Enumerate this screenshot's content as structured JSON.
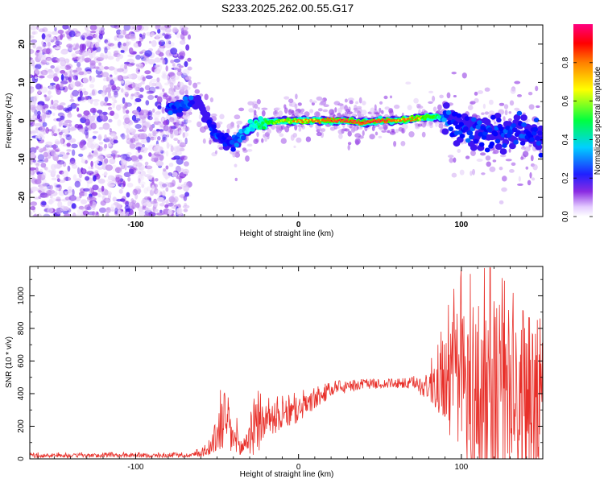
{
  "title": "S233.2025.262.00.55.G17",
  "chart_data": [
    {
      "type": "heatmap",
      "name": "spectrogram",
      "xlabel": "Height of straight line (km)",
      "ylabel": "Frequency (Hz)",
      "xlim": [
        -165,
        150
      ],
      "ylim": [
        -25,
        25
      ],
      "xticks": [
        -100,
        0,
        100
      ],
      "yticks": [
        -20,
        -10,
        0,
        10,
        20
      ],
      "colorbar": {
        "label": "Normalized spectral amplitude",
        "range": [
          0,
          1
        ],
        "ticks": [
          0.0,
          0.2,
          0.4,
          0.6,
          0.8
        ],
        "tick_labels": [
          "0.0",
          "0.2",
          "0.4",
          "0.6",
          "0.8"
        ],
        "colors": [
          "#ffffff",
          "#8a2be2",
          "#0000ff",
          "#00ffff",
          "#00ff00",
          "#ffff00",
          "#ff0000",
          "#ff0080"
        ]
      },
      "noise_region_x": [
        -165,
        -67
      ],
      "dominant_trace": {
        "x": [
          -80,
          -70,
          -65,
          -60,
          -55,
          -50,
          -45,
          -40,
          -35,
          -30,
          -25,
          -20,
          -10,
          0,
          10,
          20,
          30,
          40,
          50,
          60,
          70,
          80,
          85,
          90,
          95,
          100,
          110,
          120,
          130,
          140,
          150
        ],
        "freq": [
          3,
          4,
          5,
          4,
          0,
          -4,
          -5,
          -6,
          -4,
          -2,
          -1,
          -0.5,
          0,
          0,
          0,
          0,
          0,
          -0.5,
          0,
          0,
          0.5,
          1,
          1,
          0.5,
          -1,
          -2,
          -3,
          -3,
          -2.5,
          -3,
          -4
        ],
        "amplitude": [
          0.3,
          0.35,
          0.3,
          0.25,
          0.3,
          0.3,
          0.3,
          0.3,
          0.35,
          0.4,
          0.5,
          0.6,
          0.7,
          0.75,
          0.8,
          0.9,
          0.95,
          0.95,
          0.95,
          0.85,
          0.75,
          0.6,
          0.5,
          0.35,
          0.3,
          0.3,
          0.3,
          0.3,
          0.3,
          0.3,
          0.3
        ]
      }
    },
    {
      "type": "line",
      "name": "snr",
      "xlabel": "Height of straight line (km)",
      "ylabel": "SNR (10 * v/v)",
      "xlim": [
        -165,
        150
      ],
      "ylim": [
        0,
        1180
      ],
      "xticks": [
        -100,
        0,
        100
      ],
      "yticks": [
        0,
        200,
        400,
        600,
        800,
        1000
      ],
      "color": "#e8302a",
      "profile": {
        "x": [
          -165,
          -70,
          -62,
          -55,
          -50,
          -45,
          -40,
          -35,
          -30,
          -25,
          -20,
          -10,
          0,
          10,
          20,
          30,
          40,
          50,
          60,
          70,
          80,
          85,
          90,
          95,
          100,
          110,
          120,
          130,
          140,
          150
        ],
        "mean": [
          20,
          20,
          30,
          50,
          150,
          250,
          120,
          60,
          150,
          200,
          240,
          260,
          300,
          360,
          420,
          440,
          460,
          460,
          460,
          460,
          440,
          460,
          500,
          480,
          420,
          380,
          340,
          330,
          320,
          330
        ],
        "spread": [
          12,
          12,
          20,
          30,
          120,
          220,
          120,
          60,
          130,
          180,
          100,
          90,
          80,
          60,
          40,
          35,
          30,
          30,
          30,
          40,
          80,
          180,
          300,
          400,
          550,
          650,
          700,
          600,
          500,
          400
        ],
        "peak_max": [
          40,
          40,
          60,
          150,
          440,
          420,
          300,
          200,
          380,
          420,
          380,
          400,
          420,
          440,
          480,
          480,
          490,
          490,
          490,
          500,
          600,
          700,
          900,
          1050,
          1170,
          1180,
          1170,
          1050,
          870,
          860
        ]
      }
    }
  ]
}
